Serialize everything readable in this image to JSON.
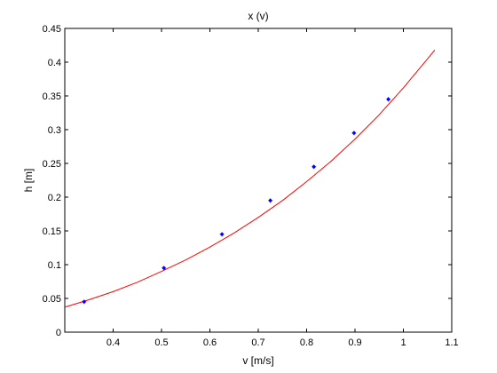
{
  "chart_data": {
    "type": "scatter",
    "title": "x (v)",
    "xlabel": "v [m/s]",
    "ylabel": "h [m]",
    "xlim": [
      0.3,
      1.1
    ],
    "ylim": [
      0,
      0.45
    ],
    "xticks": [
      0.4,
      0.5,
      0.6,
      0.7,
      0.8,
      0.9,
      1,
      1.1
    ],
    "yticks": [
      0,
      0.05,
      0.1,
      0.15,
      0.2,
      0.25,
      0.3,
      0.35,
      0.4,
      0.45
    ],
    "grid": false,
    "series": [
      {
        "kind": "points",
        "color": "#0000ff",
        "x": [
          0.34,
          0.505,
          0.625,
          0.725,
          0.815,
          0.898,
          0.969
        ],
        "y": [
          0.045,
          0.095,
          0.145,
          0.195,
          0.245,
          0.295,
          0.345
        ]
      },
      {
        "kind": "curve",
        "color": "#ff0000",
        "x": [
          0.3,
          0.35,
          0.4,
          0.45,
          0.5,
          0.55,
          0.6,
          0.65,
          0.7,
          0.75,
          0.8,
          0.85,
          0.9,
          0.95,
          1.0,
          1.05,
          1.065
        ],
        "y": [
          0.037,
          0.048,
          0.06,
          0.074,
          0.09,
          0.107,
          0.126,
          0.147,
          0.17,
          0.195,
          0.223,
          0.253,
          0.286,
          0.322,
          0.362,
          0.405,
          0.418
        ]
      }
    ]
  }
}
